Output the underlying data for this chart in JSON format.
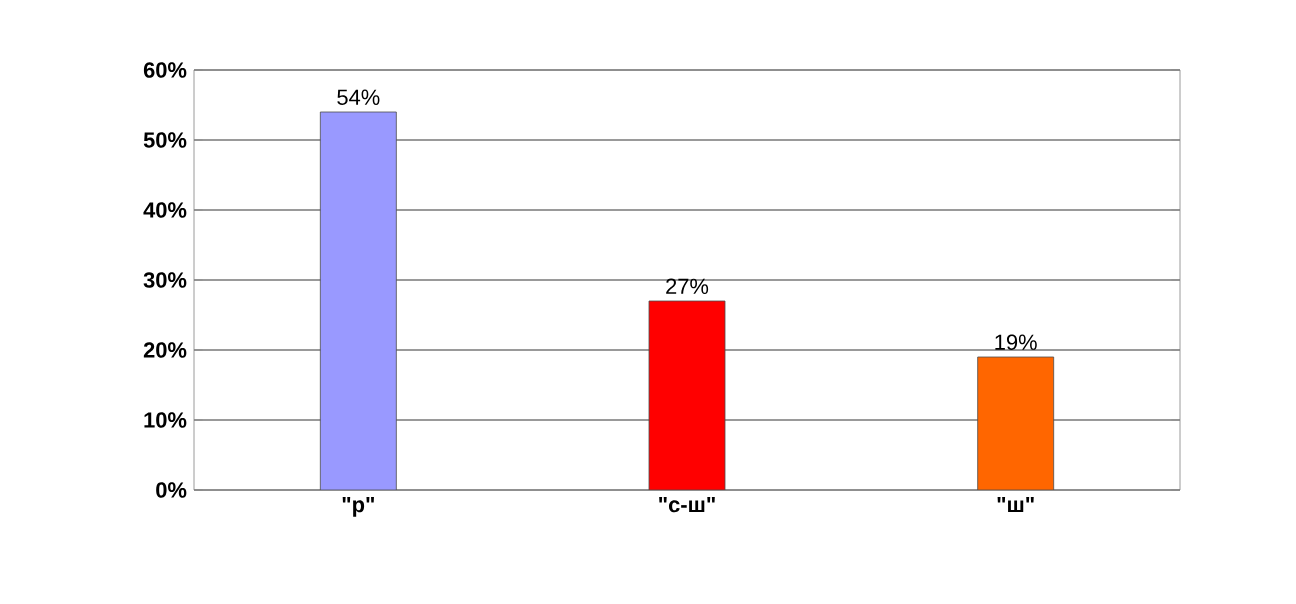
{
  "chart_data": {
    "type": "bar",
    "categories": [
      "\"р\"",
      "\"с-ш\"",
      "\"ш\""
    ],
    "values": [
      54,
      27,
      19
    ],
    "colors": [
      "#9999ff",
      "#ff0000",
      "#ff6600"
    ],
    "value_labels": [
      "54%",
      "27%",
      "19%"
    ],
    "ylim": [
      0,
      60
    ],
    "yticks": [
      {
        "value": 0,
        "label": "0%"
      },
      {
        "value": 10,
        "label": "10%"
      },
      {
        "value": 20,
        "label": "20%"
      },
      {
        "value": 30,
        "label": "30%"
      },
      {
        "value": 40,
        "label": "40%"
      },
      {
        "value": 50,
        "label": "50%"
      },
      {
        "value": 60,
        "label": "60%"
      }
    ],
    "grid": "y"
  }
}
